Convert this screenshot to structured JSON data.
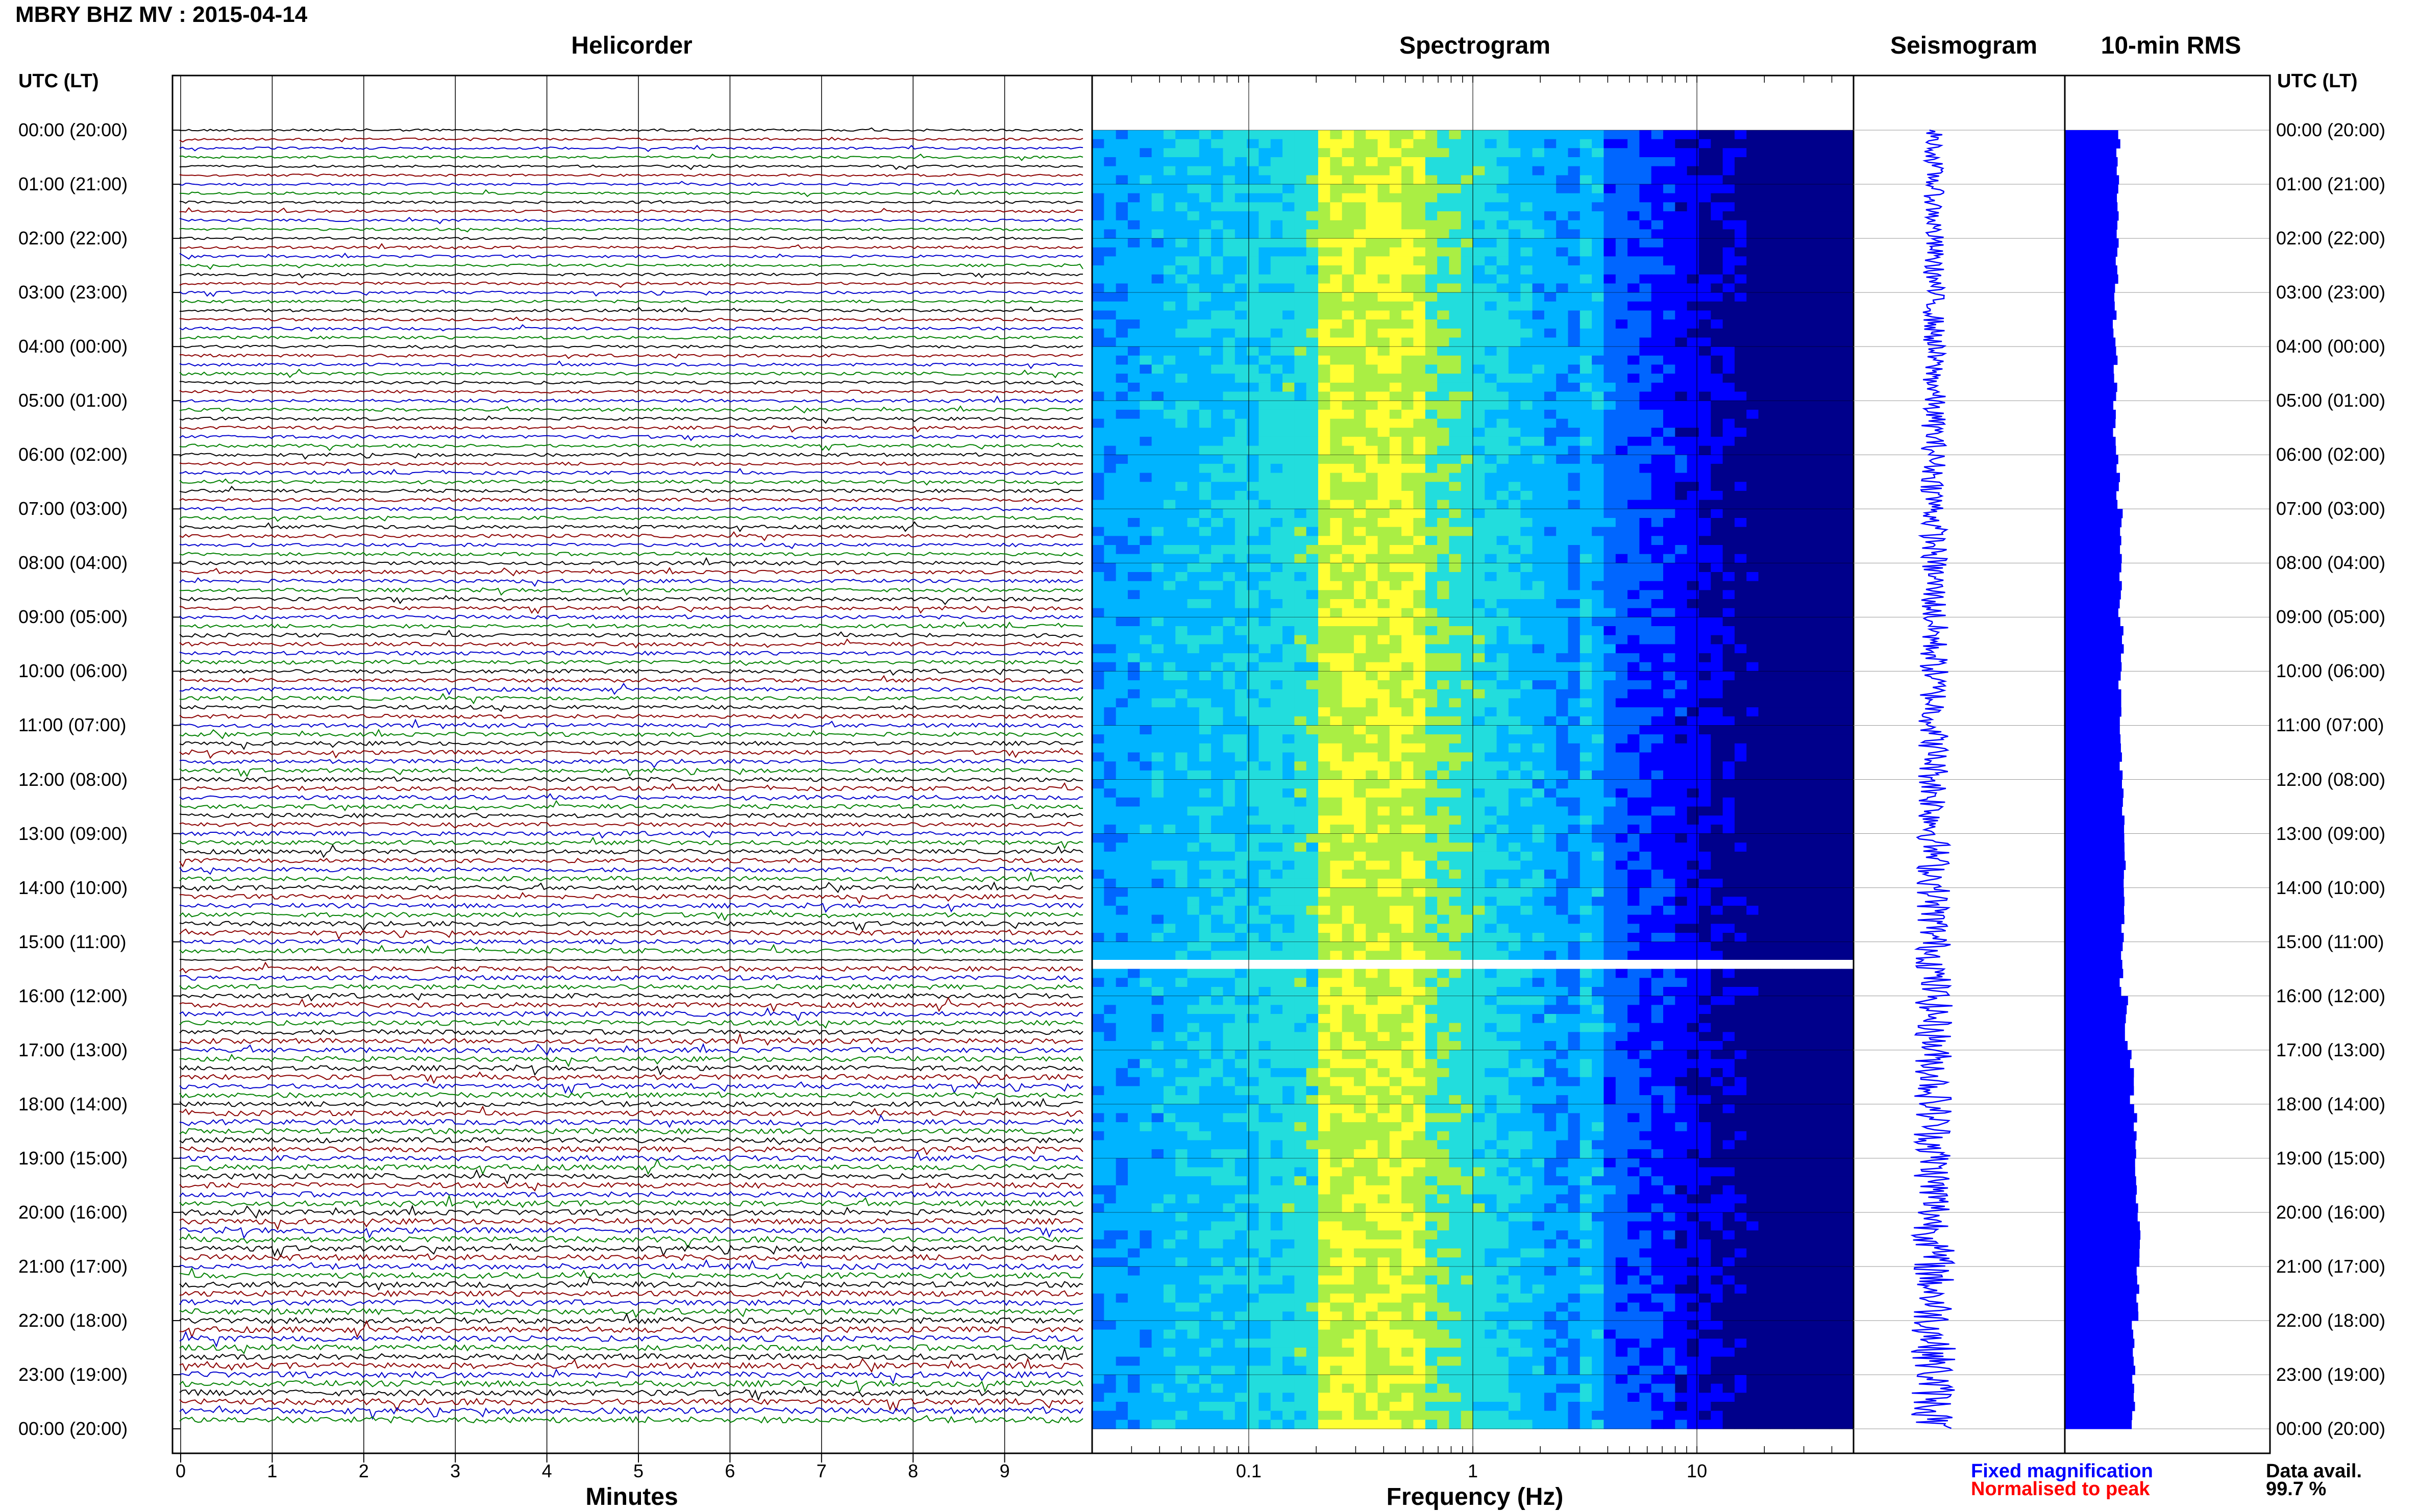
{
  "header": {
    "title": "MBRY BHZ MV : 2015-04-14"
  },
  "panels": {
    "helicorder": "Helicorder",
    "spectrogram": "Spectrogram",
    "seismogram": "Seismogram",
    "rms": "10-min RMS"
  },
  "axes": {
    "utc_left": "UTC (LT)",
    "utc_right": "UTC (LT)",
    "minutes_label": "Minutes",
    "frequency_label": "Frequency (Hz)"
  },
  "time_labels": [
    "00:00 (20:00)",
    "01:00 (21:00)",
    "02:00 (22:00)",
    "03:00 (23:00)",
    "04:00 (00:00)",
    "05:00 (01:00)",
    "06:00 (02:00)",
    "07:00 (03:00)",
    "08:00 (04:00)",
    "09:00 (05:00)",
    "10:00 (06:00)",
    "11:00 (07:00)",
    "12:00 (08:00)",
    "13:00 (09:00)",
    "14:00 (10:00)",
    "15:00 (11:00)",
    "16:00 (12:00)",
    "17:00 (13:00)",
    "18:00 (14:00)",
    "19:00 (15:00)",
    "20:00 (16:00)",
    "21:00 (17:00)",
    "22:00 (18:00)",
    "23:00 (19:00)",
    "00:00 (20:00)"
  ],
  "legend": {
    "fixed": "Fixed magnification",
    "normalised": "Normalised to peak",
    "fixed_color": "#0000ff",
    "normalised_color": "#ff0000"
  },
  "availability": {
    "label": "Data avail.",
    "value": "99.7 %"
  },
  "chart_data": [
    {
      "type": "line",
      "panel": "helicorder",
      "xlabel": "Minutes",
      "x_ticks": [
        "0",
        "1",
        "2",
        "3",
        "4",
        "5",
        "6",
        "7",
        "8",
        "9"
      ],
      "xlim": [
        0,
        10
      ],
      "lines_per_hour": 6,
      "hours": 24,
      "trace_colors": [
        "#000000",
        "#8b0000",
        "#0000cd",
        "#008000"
      ],
      "gap_utc": "15:20"
    },
    {
      "type": "heatmap",
      "panel": "spectrogram",
      "xlabel": "Frequency (Hz)",
      "x_scale": "log",
      "xlim": [
        0.02,
        50
      ],
      "x_ticks": [
        "0.1",
        "1",
        "10"
      ],
      "peak_band_hz": [
        0.2,
        0.6
      ],
      "secondary_band_hz": 3.5,
      "gap_utc": "15:20",
      "colormap": [
        "#00008b",
        "#0000ff",
        "#0066ff",
        "#00b4ff",
        "#22dddd",
        "#aaee44",
        "#ffff33"
      ]
    },
    {
      "type": "line",
      "panel": "seismogram",
      "color": "#0000ff"
    },
    {
      "type": "bar",
      "panel": "10-min RMS",
      "color": "#0000ff",
      "hours": [
        0,
        1,
        2,
        3,
        4,
        5,
        6,
        7,
        8,
        9,
        10,
        11,
        12,
        13,
        14,
        15,
        16,
        17,
        18,
        19,
        20,
        21,
        22,
        23
      ],
      "relative_values": [
        0.62,
        0.6,
        0.6,
        0.58,
        0.59,
        0.58,
        0.62,
        0.66,
        0.64,
        0.66,
        0.64,
        0.66,
        0.68,
        0.7,
        0.68,
        0.66,
        0.72,
        0.78,
        0.82,
        0.84,
        0.86,
        0.84,
        0.8,
        0.8
      ]
    }
  ]
}
